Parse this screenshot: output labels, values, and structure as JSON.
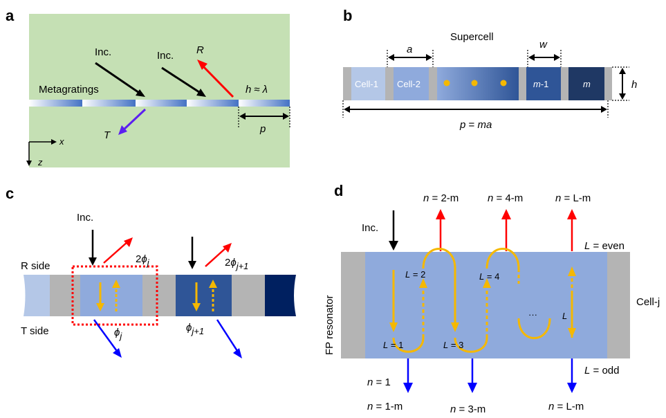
{
  "panels": {
    "a": {
      "letter": "a",
      "inc1": "Inc.",
      "inc2": "Inc.",
      "r": "R",
      "t": "T",
      "metagratings": "Metagratings",
      "h": "h",
      "approx": "≈",
      "lambda": "λ",
      "p": "p",
      "x": "x",
      "z": "z"
    },
    "b": {
      "letter": "b",
      "supercell": "Supercell",
      "a": "a",
      "w": "w",
      "h": "h",
      "cell1": "Cell-1",
      "cell2": "Cell-2",
      "m1_m": "m",
      "m1_suffix": "-1",
      "m": "m",
      "period_p": "p",
      "period_eq": " = ",
      "period_ma": "ma"
    },
    "c": {
      "letter": "c",
      "inc": "Inc.",
      "r_side": "R side",
      "t_side": "T side",
      "phi": "ϕ",
      "j": "j",
      "j1": "j+1",
      "two": "2"
    },
    "d": {
      "letter": "d",
      "inc": "Inc.",
      "fp": "FP resonator",
      "cellj": "Cell-j",
      "n_top": [
        "2-m",
        "4-m",
        "L-m"
      ],
      "n_bot1": [
        "1",
        "",
        ""
      ],
      "n_bot2": [
        "1-m",
        "3-m",
        "L-m"
      ],
      "n": "n",
      "eq": " = ",
      "L": "L",
      "even": "even",
      "odd": "odd",
      "loop_labels": [
        "1",
        "2",
        "3",
        "4"
      ],
      "ellipsis": "···"
    }
  },
  "colors": {
    "green_bg": "#c5e0b4",
    "red": "#ff0000",
    "blue": "#0000ff",
    "purple": "#5b1ff0",
    "yellow": "#f5b800",
    "gray": "#b4b4b4",
    "cell_light": "#b4c7e7",
    "cell_mid": "#8faadc",
    "cell_dark": "#2f5597",
    "cell_darkest": "#1f3864",
    "navy": "#002060"
  }
}
